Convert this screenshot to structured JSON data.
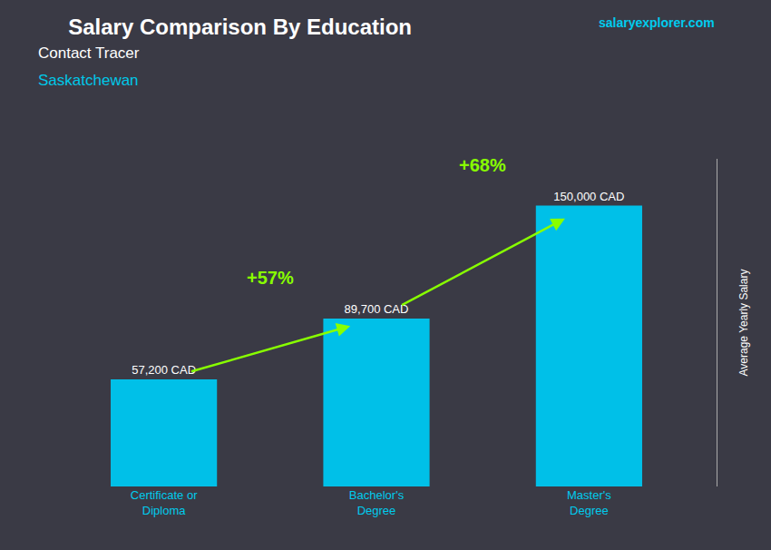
{
  "chart_data": {
    "type": "bar",
    "title": "Salary Comparison By Education",
    "subtitle": "Contact Tracer",
    "ylabel": "Average Yearly Salary",
    "categories": [
      "Certificate or\nDiploma",
      "Bachelor's\nDegree",
      "Master's\nDegree"
    ],
    "values": [
      57200,
      89700,
      150000
    ],
    "value_labels": [
      "57,200 CAD",
      "89,700 CAD",
      "150,000 CAD"
    ],
    "color": "#00c0e8",
    "ylim": [
      0,
      175000
    ],
    "grid": false,
    "data_labels": true,
    "tick_labels": "x",
    "annotations": [
      {
        "text": "Saskatchewan",
        "color": "#00c8e8"
      },
      {
        "text": "salaryexplorer.com",
        "color": "#00ccee"
      },
      {
        "text": "+57%",
        "color": "#88ff00",
        "from": "Certificate or\nDiploma",
        "to": "Bachelor's\nDegree"
      },
      {
        "text": "+68%",
        "color": "#88ff00",
        "from": "Bachelor's\nDegree",
        "to": "Master's\nDegree"
      }
    ]
  }
}
